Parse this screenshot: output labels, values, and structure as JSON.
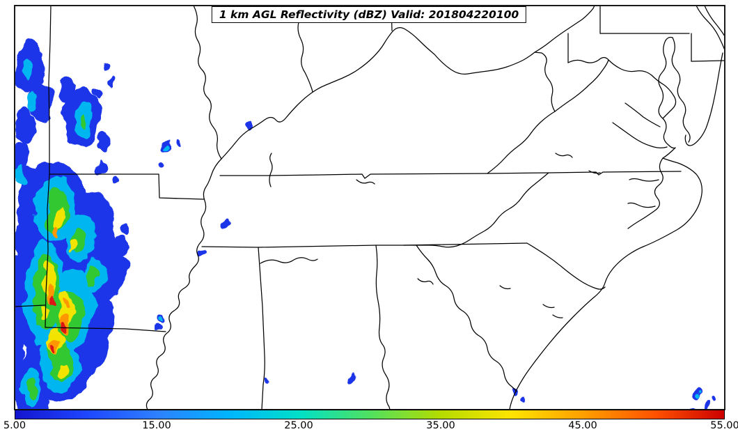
{
  "figure": {
    "title": "1 km AGL Reflectivity (dBZ) Valid: 201804220100"
  },
  "colorbar": {
    "min": 5.0,
    "max": 55.0,
    "units": "dBZ",
    "ticks": [
      "5.00",
      "15.00",
      "25.00",
      "35.00",
      "45.00",
      "55.00"
    ],
    "colors": [
      "#1414cd",
      "#1e46ff",
      "#2e80ff",
      "#00b4ff",
      "#00e0c8",
      "#50e060",
      "#b4dc00",
      "#ffe400",
      "#ffa000",
      "#ff5400",
      "#cc0000"
    ]
  }
}
